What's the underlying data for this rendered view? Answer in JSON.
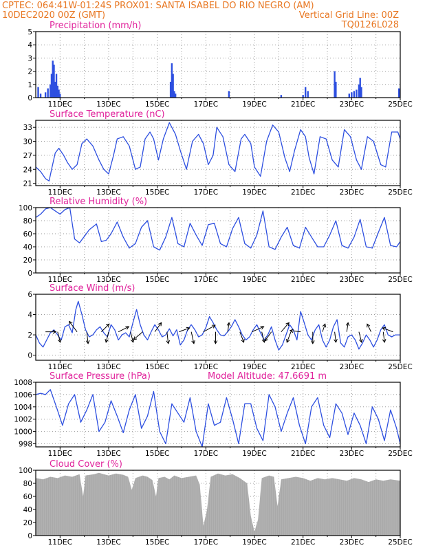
{
  "header": {
    "left_line1": "CPTEC:   064:41W-01:24S   PROX01: SANTA ISABEL DO RIO NEGRO (AM)",
    "left_line2": "10DEC2020 00Z (GMT)",
    "right_line2": "Vertical Grid Line: 00Z",
    "right_line3": "TQ0126L028"
  },
  "colors": {
    "header": "#e87722",
    "panel_title": "#e0229b",
    "line": "#2d4fe0",
    "bar": "#2d4fe0",
    "cloud": "#a9a9a9",
    "arrow": "#000000"
  },
  "x_axis": {
    "start": "10DEC2020 00Z",
    "end": "25DEC2020 00Z",
    "day_range": [
      10,
      25
    ],
    "tick_days": [
      11,
      13,
      15,
      17,
      19,
      21,
      23,
      25
    ],
    "tick_labels": [
      "11DEC",
      "13DEC",
      "15DEC",
      "17DEC",
      "19DEC",
      "21DEC",
      "23DEC",
      "25DEC"
    ]
  },
  "chart_data": [
    {
      "id": "precip",
      "type": "bar",
      "title": "Precipitation (mm/h)",
      "ylim": [
        0,
        5
      ],
      "yticks": [
        0,
        1,
        2,
        3,
        4,
        5
      ],
      "x_unit": "day of Dec 2020",
      "points": [
        [
          10.1,
          0.8
        ],
        [
          10.2,
          0.3
        ],
        [
          10.4,
          0.4
        ],
        [
          10.5,
          0.7
        ],
        [
          10.6,
          1.0
        ],
        [
          10.65,
          1.8
        ],
        [
          10.7,
          2.8
        ],
        [
          10.75,
          2.5
        ],
        [
          10.8,
          1.2
        ],
        [
          10.85,
          1.8
        ],
        [
          10.9,
          0.9
        ],
        [
          10.95,
          0.6
        ],
        [
          11.0,
          0.3
        ],
        [
          15.55,
          1.2
        ],
        [
          15.6,
          2.6
        ],
        [
          15.65,
          1.8
        ],
        [
          15.7,
          0.5
        ],
        [
          15.75,
          0.3
        ],
        [
          17.95,
          0.5
        ],
        [
          20.1,
          0.2
        ],
        [
          21.0,
          0.2
        ],
        [
          21.1,
          0.8
        ],
        [
          21.2,
          0.5
        ],
        [
          22.3,
          2.0
        ],
        [
          22.35,
          1.2
        ],
        [
          22.9,
          0.3
        ],
        [
          23.0,
          0.4
        ],
        [
          23.1,
          0.5
        ],
        [
          23.2,
          0.6
        ],
        [
          23.3,
          1.0
        ],
        [
          23.35,
          1.5
        ],
        [
          23.4,
          0.8
        ],
        [
          24.95,
          0.7
        ]
      ]
    },
    {
      "id": "temperature",
      "type": "line",
      "title": "Surface Temperature (nC)",
      "ylim": [
        20.5,
        34.5
      ],
      "yticks": [
        21,
        24,
        27,
        30,
        33
      ],
      "x": [
        10.0,
        10.2,
        10.4,
        10.55,
        10.65,
        10.8,
        10.95,
        11.15,
        11.3,
        11.5,
        11.7,
        11.9,
        12.1,
        12.35,
        12.6,
        12.8,
        13.0,
        13.2,
        13.35,
        13.6,
        13.85,
        14.1,
        14.3,
        14.5,
        14.7,
        14.85,
        15.05,
        15.25,
        15.5,
        15.75,
        15.95,
        16.2,
        16.45,
        16.7,
        16.9,
        17.1,
        17.3,
        17.45,
        17.7,
        17.95,
        18.2,
        18.45,
        18.6,
        18.85,
        19.0,
        19.25,
        19.5,
        19.75,
        20.0,
        20.25,
        20.45,
        20.65,
        20.9,
        21.1,
        21.25,
        21.45,
        21.7,
        21.95,
        22.2,
        22.45,
        22.7,
        22.95,
        23.2,
        23.4,
        23.65,
        23.9,
        24.2,
        24.4,
        24.65,
        24.9,
        25.0
      ],
      "y": [
        24.5,
        23.5,
        22.0,
        21.5,
        24.0,
        27.5,
        28.5,
        27.0,
        25.5,
        24.0,
        25.0,
        29.5,
        30.5,
        29.0,
        26.0,
        24.0,
        23.0,
        27.0,
        30.5,
        31.0,
        29.0,
        24.0,
        24.5,
        30.5,
        32.0,
        30.5,
        26.0,
        30.5,
        34.0,
        31.5,
        28.0,
        24.0,
        30.0,
        31.5,
        29.5,
        25.0,
        27.0,
        33.0,
        31.0,
        25.0,
        23.5,
        30.5,
        31.5,
        29.5,
        24.5,
        22.5,
        30.0,
        33.5,
        32.0,
        26.5,
        23.5,
        28.0,
        32.5,
        31.0,
        26.5,
        23.0,
        31.0,
        30.5,
        26.0,
        24.5,
        32.5,
        31.0,
        26.0,
        24.0,
        31.0,
        30.0,
        25.0,
        24.5,
        32.0,
        32.0,
        30.5
      ]
    },
    {
      "id": "humidity",
      "type": "line",
      "title": "Relative Humidity (%)",
      "ylim": [
        0,
        100
      ],
      "yticks": [
        0,
        20,
        40,
        60,
        80,
        100
      ],
      "x": [
        10.0,
        10.2,
        10.4,
        10.6,
        10.8,
        11.0,
        11.2,
        11.4,
        11.6,
        11.8,
        12.0,
        12.2,
        12.5,
        12.7,
        12.9,
        13.1,
        13.35,
        13.6,
        13.85,
        14.1,
        14.35,
        14.6,
        14.85,
        15.1,
        15.35,
        15.6,
        15.85,
        16.1,
        16.35,
        16.6,
        16.85,
        17.1,
        17.35,
        17.6,
        17.85,
        18.1,
        18.35,
        18.6,
        18.85,
        19.1,
        19.35,
        19.6,
        19.85,
        20.1,
        20.35,
        20.6,
        20.85,
        21.1,
        21.35,
        21.6,
        21.85,
        22.1,
        22.35,
        22.6,
        22.85,
        23.1,
        23.35,
        23.6,
        23.85,
        24.1,
        24.35,
        24.6,
        24.85,
        25.0
      ],
      "y": [
        85,
        90,
        98,
        100,
        95,
        90,
        97,
        100,
        52,
        46,
        56,
        66,
        75,
        48,
        50,
        60,
        78,
        55,
        38,
        45,
        70,
        80,
        40,
        35,
        55,
        85,
        45,
        40,
        76,
        58,
        42,
        74,
        76,
        45,
        40,
        68,
        85,
        45,
        38,
        58,
        95,
        40,
        36,
        55,
        70,
        42,
        38,
        70,
        55,
        40,
        40,
        58,
        80,
        42,
        38,
        55,
        82,
        40,
        38,
        62,
        85,
        42,
        40,
        48
      ]
    },
    {
      "id": "wind",
      "type": "line",
      "title": "Surface Wind (m/s)",
      "ylim": [
        -0.5,
        6
      ],
      "yticks": [
        0,
        2,
        4,
        6
      ],
      "x": [
        10.0,
        10.15,
        10.3,
        10.45,
        10.6,
        10.75,
        10.9,
        11.05,
        11.2,
        11.35,
        11.5,
        11.65,
        11.75,
        11.9,
        12.05,
        12.2,
        12.35,
        12.5,
        12.65,
        12.8,
        12.95,
        13.1,
        13.25,
        13.4,
        13.55,
        13.7,
        13.85,
        14.0,
        14.15,
        14.3,
        14.45,
        14.6,
        14.75,
        14.9,
        15.05,
        15.2,
        15.35,
        15.5,
        15.65,
        15.8,
        15.95,
        16.1,
        16.25,
        16.4,
        16.55,
        16.7,
        16.85,
        17.0,
        17.15,
        17.3,
        17.45,
        17.6,
        17.75,
        17.9,
        18.05,
        18.2,
        18.35,
        18.5,
        18.65,
        18.8,
        18.95,
        19.1,
        19.25,
        19.4,
        19.55,
        19.7,
        19.85,
        20.0,
        20.15,
        20.3,
        20.45,
        20.6,
        20.75,
        20.9,
        21.05,
        21.2,
        21.35,
        21.5,
        21.65,
        21.8,
        21.95,
        22.1,
        22.25,
        22.4,
        22.55,
        22.7,
        22.85,
        23.0,
        23.15,
        23.3,
        23.45,
        23.6,
        23.75,
        23.9,
        24.05,
        24.2,
        24.35,
        24.5,
        24.65,
        24.8,
        25.0
      ],
      "y": [
        2.0,
        1.2,
        0.8,
        1.5,
        2.2,
        2.5,
        2.0,
        1.5,
        2.8,
        3.0,
        2.2,
        4.5,
        5.3,
        4.0,
        2.5,
        1.8,
        2.0,
        2.5,
        2.8,
        2.2,
        1.8,
        3.0,
        2.5,
        1.5,
        2.0,
        2.2,
        1.8,
        3.2,
        4.5,
        3.0,
        2.0,
        1.5,
        2.3,
        3.0,
        2.5,
        1.8,
        2.0,
        2.6,
        1.9,
        2.5,
        1.0,
        1.5,
        2.5,
        3.0,
        2.5,
        1.8,
        2.0,
        2.7,
        3.8,
        3.2,
        2.5,
        2.0,
        1.9,
        2.3,
        2.8,
        3.5,
        2.8,
        2.0,
        1.5,
        1.8,
        2.5,
        3.0,
        2.2,
        1.5,
        2.0,
        2.8,
        1.5,
        0.5,
        1.0,
        2.0,
        3.0,
        2.5,
        1.5,
        4.3,
        3.2,
        2.0,
        1.5,
        2.5,
        3.0,
        1.5,
        0.8,
        1.5,
        2.8,
        3.5,
        1.2,
        0.8,
        1.8,
        2.0,
        1.5,
        0.6,
        1.2,
        2.0,
        1.5,
        0.8,
        1.5,
        2.5,
        3.0,
        2.0,
        1.8,
        2.0,
        2.0
      ],
      "vectors": [
        [
          10.4,
          0.8,
          0.0
        ],
        [
          10.9,
          0.2,
          -0.8
        ],
        [
          11.7,
          -0.6,
          0.8
        ],
        [
          12.1,
          0.1,
          -0.9
        ],
        [
          12.7,
          0.6,
          0.6
        ],
        [
          13.0,
          -0.2,
          -0.8
        ],
        [
          13.4,
          0.8,
          0.4
        ],
        [
          13.9,
          0.2,
          -0.8
        ],
        [
          14.4,
          -0.7,
          -0.6
        ],
        [
          14.9,
          0.5,
          0.7
        ],
        [
          15.4,
          0.1,
          -0.9
        ],
        [
          15.9,
          0.8,
          0.3
        ],
        [
          16.4,
          0.2,
          -0.9
        ],
        [
          16.9,
          0.9,
          0.5
        ],
        [
          17.4,
          0.0,
          -0.9
        ],
        [
          17.9,
          0.1,
          0.7
        ],
        [
          18.4,
          0.3,
          -0.8
        ],
        [
          18.9,
          0.9,
          0.4
        ],
        [
          19.3,
          0.2,
          -0.8
        ],
        [
          19.7,
          -0.5,
          -0.7
        ],
        [
          20.1,
          0.6,
          0.7
        ],
        [
          20.5,
          -0.3,
          -0.8
        ],
        [
          20.9,
          -0.8,
          0.1
        ],
        [
          21.4,
          0.0,
          -0.9
        ],
        [
          21.8,
          0.2,
          0.6
        ],
        [
          22.3,
          0.1,
          -0.8
        ],
        [
          22.8,
          0.1,
          0.7
        ],
        [
          23.3,
          0.2,
          -0.8
        ],
        [
          23.8,
          -0.3,
          0.6
        ],
        [
          24.3,
          0.1,
          -0.8
        ],
        [
          24.7,
          -0.8,
          0.3
        ]
      ]
    },
    {
      "id": "pressure",
      "type": "line",
      "title": "Surface Pressure (hPa)",
      "annotation": "Model Altitude: 47.6691 m",
      "ylim": [
        997.5,
        1008
      ],
      "yticks": [
        998,
        1000,
        1002,
        1004,
        1006,
        1008
      ],
      "x": [
        10.0,
        10.2,
        10.4,
        10.6,
        10.85,
        11.1,
        11.35,
        11.6,
        11.85,
        12.1,
        12.35,
        12.6,
        12.85,
        13.1,
        13.35,
        13.6,
        13.85,
        14.1,
        14.35,
        14.6,
        14.85,
        15.1,
        15.35,
        15.6,
        15.85,
        16.1,
        16.35,
        16.6,
        16.85,
        17.1,
        17.35,
        17.6,
        17.85,
        18.1,
        18.35,
        18.6,
        18.85,
        19.1,
        19.35,
        19.6,
        19.85,
        20.1,
        20.35,
        20.6,
        20.85,
        21.1,
        21.35,
        21.6,
        21.85,
        22.1,
        22.35,
        22.6,
        22.85,
        23.1,
        23.35,
        23.6,
        23.85,
        24.1,
        24.35,
        24.6,
        24.85,
        25.0
      ],
      "y": [
        1006.0,
        1006.2,
        1006.0,
        1006.8,
        1004.0,
        1001.0,
        1004.5,
        1006.0,
        1001.5,
        1003.5,
        1006.0,
        1000.0,
        1001.5,
        1005.0,
        1002.5,
        999.8,
        1003.5,
        1006.0,
        1000.5,
        1002.5,
        1006.5,
        1000.0,
        998.0,
        1004.5,
        1003.0,
        1001.5,
        1005.5,
        1000.0,
        997.5,
        1004.5,
        1001.0,
        1001.5,
        1005.5,
        1002.0,
        998.0,
        1004.5,
        1004.5,
        1000.5,
        998.5,
        1006.0,
        1004.0,
        1000.0,
        1003.0,
        1005.5,
        1001.0,
        998.0,
        1004.0,
        1005.5,
        1001.0,
        999.0,
        1004.5,
        1003.0,
        999.5,
        1003.0,
        1001.0,
        998.0,
        1004.0,
        1002.0,
        998.5,
        1003.5,
        1000.5,
        998.0
      ]
    },
    {
      "id": "cloud",
      "type": "area",
      "title": "Cloud Cover (%)",
      "ylim": [
        0,
        100
      ],
      "yticks": [
        0,
        20,
        40,
        60,
        80,
        100
      ],
      "points": [
        [
          10.0,
          88
        ],
        [
          10.3,
          86
        ],
        [
          10.6,
          90
        ],
        [
          10.9,
          88
        ],
        [
          11.2,
          92
        ],
        [
          11.5,
          90
        ],
        [
          11.8,
          94
        ],
        [
          11.95,
          60
        ],
        [
          12.05,
          92
        ],
        [
          12.4,
          94
        ],
        [
          12.6,
          96
        ],
        [
          12.8,
          94
        ],
        [
          13.0,
          92
        ],
        [
          13.3,
          95
        ],
        [
          13.6,
          93
        ],
        [
          13.8,
          90
        ],
        [
          13.95,
          70
        ],
        [
          14.1,
          88
        ],
        [
          14.4,
          92
        ],
        [
          14.6,
          90
        ],
        [
          14.8,
          85
        ],
        [
          14.95,
          60
        ],
        [
          15.05,
          88
        ],
        [
          15.3,
          90
        ],
        [
          15.5,
          86
        ],
        [
          15.7,
          92
        ],
        [
          16.0,
          88
        ],
        [
          16.3,
          90
        ],
        [
          16.6,
          92
        ],
        [
          16.75,
          78
        ],
        [
          16.9,
          15
        ],
        [
          17.05,
          40
        ],
        [
          17.2,
          90
        ],
        [
          17.5,
          95
        ],
        [
          17.8,
          92
        ],
        [
          18.1,
          94
        ],
        [
          18.4,
          88
        ],
        [
          18.7,
          80
        ],
        [
          18.85,
          30
        ],
        [
          19.0,
          6
        ],
        [
          19.15,
          25
        ],
        [
          19.3,
          88
        ],
        [
          19.6,
          92
        ],
        [
          19.8,
          90
        ],
        [
          19.95,
          45
        ],
        [
          20.1,
          86
        ],
        [
          20.4,
          88
        ],
        [
          20.7,
          90
        ],
        [
          21.0,
          88
        ],
        [
          21.3,
          84
        ],
        [
          21.6,
          88
        ],
        [
          21.9,
          86
        ],
        [
          22.2,
          88
        ],
        [
          22.5,
          86
        ],
        [
          22.8,
          84
        ],
        [
          23.1,
          88
        ],
        [
          23.4,
          86
        ],
        [
          23.7,
          82
        ],
        [
          24.0,
          86
        ],
        [
          24.3,
          84
        ],
        [
          24.6,
          86
        ],
        [
          25.0,
          84
        ]
      ]
    }
  ]
}
